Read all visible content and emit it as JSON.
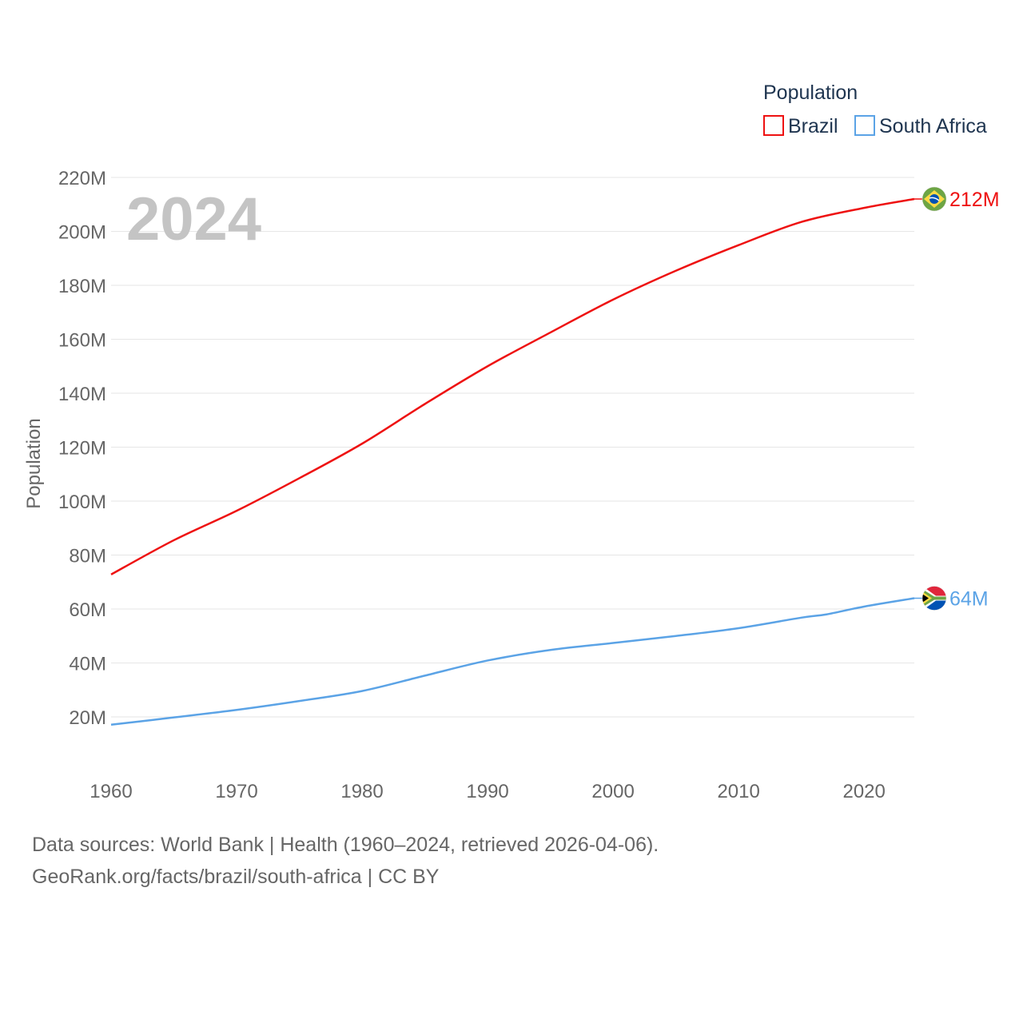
{
  "chart_data": {
    "type": "line",
    "title": "",
    "ylabel": "Population",
    "xlabel": "",
    "year_label": "2024",
    "legend_title": "Population",
    "x_ticks": [
      1960,
      1970,
      1980,
      1990,
      2000,
      2010,
      2020
    ],
    "y_ticks": [
      20,
      40,
      60,
      80,
      100,
      120,
      140,
      160,
      180,
      200,
      220
    ],
    "y_tick_labels": [
      "20M",
      "40M",
      "60M",
      "80M",
      "100M",
      "120M",
      "140M",
      "160M",
      "180M",
      "200M",
      "220M"
    ],
    "xlim": [
      1960,
      2024
    ],
    "ylim": [
      5,
      220
    ],
    "y_unit": "millions",
    "series": [
      {
        "name": "Brazil",
        "color": "#ee1111",
        "flag_icon": "brazil-flag-icon",
        "end_label": "212M",
        "x": [
          1960,
          1965,
          1970,
          1975,
          1980,
          1985,
          1990,
          1995,
          2000,
          2005,
          2010,
          2015,
          2020,
          2024
        ],
        "values": [
          72.8,
          85.5,
          96.4,
          108.5,
          121.3,
          136.0,
          150.0,
          162.5,
          174.7,
          185.4,
          194.9,
          203.5,
          208.7,
          212.0
        ]
      },
      {
        "name": "South Africa",
        "color": "#5ba3e6",
        "flag_icon": "south-africa-flag-icon",
        "end_label": "64M",
        "x": [
          1960,
          1965,
          1970,
          1975,
          1980,
          1985,
          1990,
          1995,
          2000,
          2005,
          2010,
          2015,
          2017,
          2020,
          2024
        ],
        "values": [
          17.1,
          19.8,
          22.6,
          25.9,
          29.6,
          35.3,
          40.9,
          44.8,
          47.4,
          50.0,
          52.9,
          56.8,
          58.0,
          60.9,
          64.0
        ]
      }
    ]
  },
  "footer": {
    "line1": "Data sources: World Bank | Health (1960–2024, retrieved 2026-04-06).",
    "line2": "GeoRank.org/facts/brazil/south-africa | CC BY"
  }
}
